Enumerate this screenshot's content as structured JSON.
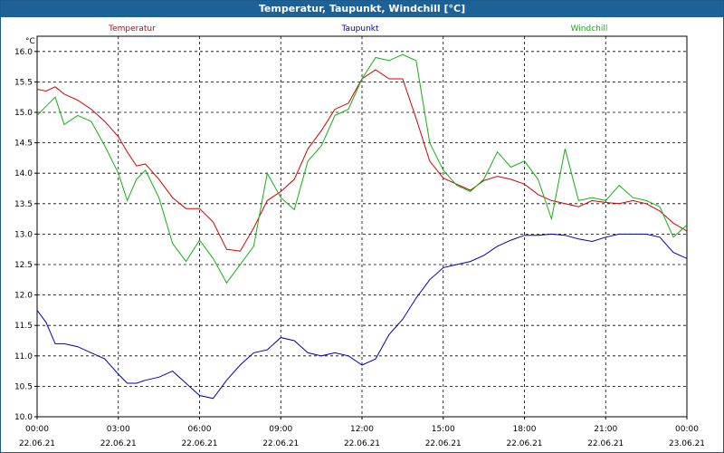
{
  "title": "Temperatur, Taupunkt, Windchill [°C]",
  "colors": {
    "titlebar": "#1d6197",
    "grid": "#000000"
  },
  "chart_data": {
    "type": "line",
    "title": "Temperatur, Taupunkt, Windchill [°C]",
    "ylabel": "°C",
    "xlabel": "",
    "ylim": [
      10.0,
      16.25
    ],
    "xlim": [
      0,
      24
    ],
    "grid": true,
    "yticks": [
      "10.0",
      "10.5",
      "11.0",
      "11.5",
      "12.0",
      "12.5",
      "13.0",
      "13.5",
      "14.0",
      "14.5",
      "15.0",
      "15.5",
      "16.0"
    ],
    "xticks": [
      {
        "time": "00:00",
        "date": "22.06.21"
      },
      {
        "time": "03:00",
        "date": "22.06.21"
      },
      {
        "time": "06:00",
        "date": "22.06.21"
      },
      {
        "time": "09:00",
        "date": "22.06.21"
      },
      {
        "time": "12:00",
        "date": "22.06.21"
      },
      {
        "time": "15:00",
        "date": "22.06.21"
      },
      {
        "time": "18:00",
        "date": "22.06.21"
      },
      {
        "time": "21:00",
        "date": "22.06.21"
      },
      {
        "time": "00:00",
        "date": "23.06.21"
      }
    ],
    "series": [
      {
        "name": "Temperatur",
        "color": "#d40000",
        "x": [
          0,
          0.33,
          0.67,
          1,
          1.5,
          2,
          2.5,
          3,
          3.33,
          3.67,
          4,
          4.5,
          5,
          5.5,
          6,
          6.5,
          7,
          7.5,
          8,
          8.5,
          9,
          9.5,
          10,
          10.5,
          11,
          11.5,
          12,
          12.5,
          13,
          13.5,
          14,
          14.5,
          15,
          15.5,
          16,
          16.5,
          17,
          17.5,
          18,
          18.5,
          19,
          19.5,
          20,
          20.5,
          21,
          21.5,
          22,
          22.5,
          23,
          23.5,
          24
        ],
        "values": [
          15.38,
          15.35,
          15.42,
          15.3,
          15.2,
          15.05,
          14.85,
          14.6,
          14.35,
          14.12,
          14.15,
          13.9,
          13.6,
          13.42,
          13.42,
          13.2,
          12.75,
          12.72,
          13.1,
          13.55,
          13.7,
          13.9,
          14.4,
          14.7,
          15.05,
          15.15,
          15.55,
          15.7,
          15.55,
          15.55,
          14.9,
          14.2,
          13.92,
          13.82,
          13.72,
          13.88,
          13.95,
          13.9,
          13.82,
          13.65,
          13.55,
          13.5,
          13.45,
          13.55,
          13.52,
          13.5,
          13.55,
          13.5,
          13.38,
          13.18,
          13.05
        ]
      },
      {
        "name": "Taupunkt",
        "color": "#0000b4",
        "x": [
          0,
          0.33,
          0.67,
          1,
          1.5,
          2,
          2.5,
          3,
          3.33,
          3.67,
          4,
          4.5,
          5,
          5.5,
          6,
          6.5,
          7,
          7.5,
          8,
          8.5,
          9,
          9.5,
          10,
          10.5,
          11,
          11.5,
          12,
          12.5,
          13,
          13.5,
          14,
          14.5,
          15,
          15.5,
          16,
          16.5,
          17,
          17.5,
          18,
          18.5,
          19,
          19.5,
          20,
          20.5,
          21,
          21.5,
          22,
          22.5,
          23,
          23.5,
          24
        ],
        "values": [
          11.75,
          11.55,
          11.2,
          11.2,
          11.15,
          11.05,
          10.95,
          10.7,
          10.55,
          10.55,
          10.6,
          10.65,
          10.75,
          10.55,
          10.35,
          10.3,
          10.6,
          10.85,
          11.05,
          11.1,
          11.3,
          11.25,
          11.05,
          11.0,
          11.05,
          11.0,
          10.85,
          10.95,
          11.35,
          11.6,
          11.95,
          12.25,
          12.45,
          12.5,
          12.55,
          12.65,
          12.8,
          12.9,
          12.98,
          12.98,
          13.0,
          12.98,
          12.92,
          12.88,
          12.95,
          13.0,
          13.0,
          13.0,
          12.95,
          12.7,
          12.6
        ]
      },
      {
        "name": "Windchill",
        "color": "#12b012",
        "x": [
          0,
          0.33,
          0.67,
          1,
          1.5,
          2,
          2.5,
          3,
          3.33,
          3.67,
          4,
          4.5,
          5,
          5.5,
          6,
          6.5,
          7,
          7.5,
          8,
          8.5,
          9,
          9.5,
          10,
          10.5,
          11,
          11.5,
          12,
          12.5,
          13,
          13.5,
          14,
          14.5,
          15,
          15.5,
          16,
          16.5,
          17,
          17.5,
          18,
          18.5,
          19,
          19.5,
          20,
          20.5,
          21,
          21.5,
          22,
          22.5,
          23,
          23.5,
          24
        ],
        "values": [
          14.95,
          15.1,
          15.25,
          14.8,
          14.95,
          14.85,
          14.45,
          14.0,
          13.55,
          13.9,
          14.05,
          13.6,
          12.85,
          12.55,
          12.9,
          12.6,
          12.2,
          12.5,
          12.8,
          14.0,
          13.6,
          13.4,
          14.2,
          14.45,
          14.95,
          15.05,
          15.55,
          15.9,
          15.85,
          15.95,
          15.85,
          14.5,
          14.05,
          13.8,
          13.7,
          13.9,
          14.35,
          14.1,
          14.2,
          13.9,
          13.25,
          14.4,
          13.55,
          13.6,
          13.55,
          13.8,
          13.6,
          13.55,
          13.45,
          12.95,
          13.15
        ]
      }
    ]
  }
}
